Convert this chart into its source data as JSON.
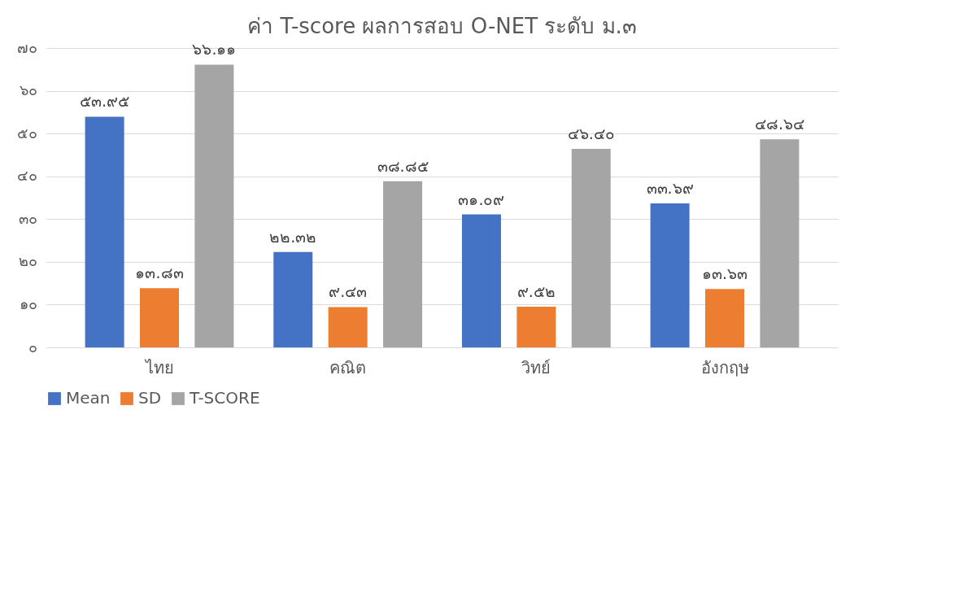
{
  "chart_data": {
    "type": "bar",
    "title": "ค่า T-score  ผลการสอบ O-NET ระดับ ม.๓",
    "categories": [
      "ไทย",
      "คณิต",
      "วิทย์",
      "อังกฤษ"
    ],
    "series": [
      {
        "name": "Mean",
        "color": "#4472c4",
        "values": [
          53.95,
          22.32,
          31.09,
          33.69
        ],
        "value_labels": [
          "๕๓.๙๕",
          "๒๒.๓๒",
          "๓๑.๐๙",
          "๓๓.๖๙"
        ]
      },
      {
        "name": "SD",
        "color": "#ed7d31",
        "values": [
          13.83,
          9.43,
          9.52,
          13.63
        ],
        "value_labels": [
          "๑๓.๘๓",
          "๙.๔๓",
          "๙.๕๒",
          "๑๓.๖๓"
        ]
      },
      {
        "name": "T-SCORE",
        "color": "#a5a5a5",
        "values": [
          66.11,
          38.85,
          46.4,
          48.64
        ],
        "value_labels": [
          "๖๖.๑๑",
          "๓๘.๘๕",
          "๔๖.๔๐",
          "๔๘.๖๔"
        ]
      }
    ],
    "ylim": [
      0,
      70
    ],
    "yticks": [
      {
        "value": 0,
        "label": "๐"
      },
      {
        "value": 10,
        "label": "๑๐"
      },
      {
        "value": 20,
        "label": "๒๐"
      },
      {
        "value": 30,
        "label": "๓๐"
      },
      {
        "value": 40,
        "label": "๔๐"
      },
      {
        "value": 50,
        "label": "๕๐"
      },
      {
        "value": 60,
        "label": "๖๐"
      },
      {
        "value": 70,
        "label": "๗๐"
      }
    ],
    "grid": "y",
    "legend": "bottom"
  }
}
